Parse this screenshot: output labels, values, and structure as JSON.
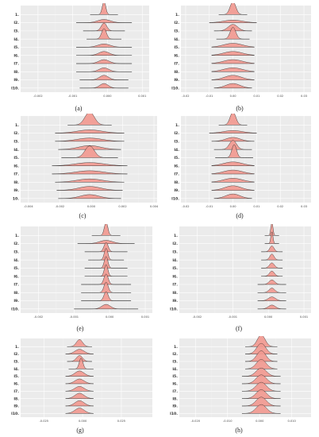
{
  "colors": {
    "ridge_fill": "#f19990",
    "panel_bg": "#ebebeb",
    "line": "#2b2b2b"
  },
  "chart_data": [
    {
      "id": "a",
      "caption": "(a)",
      "type": "ridgeline",
      "labels": [
        "1.",
        "I2.",
        "I3.",
        "I4.",
        "I5.",
        "I6.",
        "I7.",
        "I8.",
        "I9.",
        "I10."
      ],
      "x_ticks": [
        "-0.002",
        "-0.001",
        "0.000",
        "0.001"
      ],
      "xlim": [
        -0.0025,
        0.0012
      ],
      "ridges": [
        {
          "center": -0.0001,
          "spread": 5e-05,
          "height": 1.0,
          "tail": 0.0004
        },
        {
          "center": -0.0001,
          "spread": 0.00018,
          "height": 0.25,
          "tail": 0.0008
        },
        {
          "center": -0.0001,
          "spread": 8e-05,
          "height": 0.6,
          "tail": 0.0006
        },
        {
          "center": -0.0001,
          "spread": 7e-05,
          "height": 0.8,
          "tail": 0.0005
        },
        {
          "center": -0.0001,
          "spread": 0.00018,
          "height": 0.25,
          "tail": 0.0008
        },
        {
          "center": -0.0001,
          "spread": 0.00015,
          "height": 0.3,
          "tail": 0.0008
        },
        {
          "center": -0.0001,
          "spread": 0.00015,
          "height": 0.3,
          "tail": 0.0008
        },
        {
          "center": -0.0001,
          "spread": 0.00014,
          "height": 0.3,
          "tail": 0.0008
        },
        {
          "center": -0.0001,
          "spread": 0.00013,
          "height": 0.35,
          "tail": 0.0007
        },
        {
          "center": -0.0001,
          "spread": 0.00012,
          "height": 0.35,
          "tail": 0.0007
        }
      ]
    },
    {
      "id": "b",
      "caption": "(b)",
      "type": "ridgeline",
      "labels": [
        "1.",
        "I2.",
        "I3.",
        "I4.",
        "I5.",
        "I6.",
        "I7.",
        "I8.",
        "I9.",
        "I10."
      ],
      "x_ticks": [
        "-0.02",
        "-0.01",
        "0.00",
        "0.01",
        "0.02",
        "0.03"
      ],
      "xlim": [
        -0.022,
        0.033
      ],
      "ridges": [
        {
          "center": 0.0,
          "spread": 0.0012,
          "height": 1.0,
          "tail": 0.006
        },
        {
          "center": 0.0,
          "spread": 0.004,
          "height": 0.2,
          "tail": 0.01
        },
        {
          "center": 0.0,
          "spread": 0.002,
          "height": 0.5,
          "tail": 0.008
        },
        {
          "center": 0.0,
          "spread": 0.0012,
          "height": 0.9,
          "tail": 0.007
        },
        {
          "center": 0.0,
          "spread": 0.004,
          "height": 0.3,
          "tail": 0.009
        },
        {
          "center": 0.0,
          "spread": 0.004,
          "height": 0.3,
          "tail": 0.009
        },
        {
          "center": 0.0,
          "spread": 0.004,
          "height": 0.3,
          "tail": 0.009
        },
        {
          "center": 0.0,
          "spread": 0.004,
          "height": 0.3,
          "tail": 0.009
        },
        {
          "center": 0.0,
          "spread": 0.0035,
          "height": 0.35,
          "tail": 0.009
        },
        {
          "center": 0.0,
          "spread": 0.003,
          "height": 0.35,
          "tail": 0.008
        }
      ]
    },
    {
      "id": "c",
      "caption": "(c)",
      "type": "ridgeline",
      "labels": [
        "1.",
        "I2.",
        "I3.",
        "I4.",
        "I5.",
        "I6.",
        "I7.",
        "I8.",
        "I9.",
        "10."
      ],
      "x_ticks": [
        "-0.004",
        "-0.002",
        "0.000",
        "0.002",
        "0.004"
      ],
      "xlim": [
        -0.0045,
        0.0042
      ],
      "ridges": [
        {
          "center": -0.0001,
          "spread": 0.0003,
          "height": 1.0,
          "tail": 0.0014
        },
        {
          "center": -0.0001,
          "spread": 0.0008,
          "height": 0.25,
          "tail": 0.0022
        },
        {
          "center": -0.0001,
          "spread": 0.0008,
          "height": 0.25,
          "tail": 0.0022
        },
        {
          "center": -0.0001,
          "spread": 0.0007,
          "height": 0.3,
          "tail": 0.002
        },
        {
          "center": -0.0001,
          "spread": 0.0003,
          "height": 0.9,
          "tail": 0.0018
        },
        {
          "center": -0.0001,
          "spread": 0.0009,
          "height": 0.25,
          "tail": 0.0024
        },
        {
          "center": -0.0001,
          "spread": 0.0009,
          "height": 0.25,
          "tail": 0.0024
        },
        {
          "center": -0.0001,
          "spread": 0.0008,
          "height": 0.25,
          "tail": 0.0022
        },
        {
          "center": -0.0001,
          "spread": 0.0007,
          "height": 0.3,
          "tail": 0.0021
        },
        {
          "center": -0.0001,
          "spread": 0.0006,
          "height": 0.3,
          "tail": 0.002
        }
      ]
    },
    {
      "id": "d",
      "caption": "(d)",
      "type": "ridgeline",
      "labels": [
        "1.",
        "I2.",
        "I3.",
        "I4.",
        "I5.",
        "I6.",
        "I7.",
        "I8.",
        "I9.",
        "I10."
      ],
      "x_ticks": [
        "-0.02",
        "-0.01",
        "0.00",
        "0.01",
        "0.02",
        "0.03"
      ],
      "xlim": [
        -0.022,
        0.033
      ],
      "ridges": [
        {
          "center": 0.0,
          "spread": 0.0012,
          "height": 1.0,
          "tail": 0.006
        },
        {
          "center": 0.0,
          "spread": 0.004,
          "height": 0.2,
          "tail": 0.01
        },
        {
          "center": 0.0,
          "spread": 0.003,
          "height": 0.3,
          "tail": 0.009
        },
        {
          "center": 0.0,
          "spread": 0.0015,
          "height": 0.7,
          "tail": 0.008
        },
        {
          "center": 0.0005,
          "spread": 0.001,
          "height": 1.0,
          "tail": 0.008
        },
        {
          "center": 0.0,
          "spread": 0.004,
          "height": 0.3,
          "tail": 0.009
        },
        {
          "center": 0.0,
          "spread": 0.004,
          "height": 0.3,
          "tail": 0.009
        },
        {
          "center": 0.0,
          "spread": 0.004,
          "height": 0.3,
          "tail": 0.009
        },
        {
          "center": 0.0,
          "spread": 0.0035,
          "height": 0.35,
          "tail": 0.009
        },
        {
          "center": 0.0,
          "spread": 0.003,
          "height": 0.35,
          "tail": 0.008
        }
      ]
    },
    {
      "id": "e",
      "caption": "(e)",
      "type": "ridgeline",
      "labels": [
        "1.",
        "I2.",
        "I3.",
        "I4.",
        "I5.",
        "I6.",
        "I7.",
        "I8.",
        "I9.",
        "I10."
      ],
      "x_ticks": [
        "-0.002",
        "-0.001",
        "0.000",
        "0.001"
      ],
      "xlim": [
        -0.0025,
        0.0012
      ],
      "ridges": [
        {
          "center": -0.0001,
          "spread": 5e-05,
          "height": 1.0,
          "tail": 0.0004
        },
        {
          "center": -0.0001,
          "spread": 0.00018,
          "height": 0.25,
          "tail": 0.0008
        },
        {
          "center": -0.0001,
          "spread": 6e-05,
          "height": 0.7,
          "tail": 0.0006
        },
        {
          "center": -0.0001,
          "spread": 5e-05,
          "height": 0.9,
          "tail": 0.0005
        },
        {
          "center": -0.0001,
          "spread": 5e-05,
          "height": 0.9,
          "tail": 0.0006
        },
        {
          "center": -0.0001,
          "spread": 5e-05,
          "height": 0.9,
          "tail": 0.0006
        },
        {
          "center": -0.0001,
          "spread": 6e-05,
          "height": 0.8,
          "tail": 0.0007
        },
        {
          "center": -0.0001,
          "spread": 6e-05,
          "height": 0.8,
          "tail": 0.0007
        },
        {
          "center": -0.0001,
          "spread": 6e-05,
          "height": 0.7,
          "tail": 0.0007
        },
        {
          "center": -0.0001,
          "spread": 0.00012,
          "height": 0.35,
          "tail": 0.0009
        }
      ]
    },
    {
      "id": "f",
      "caption": "(f)",
      "type": "ridgeline",
      "labels": [
        "1.",
        "I2.",
        "I3.",
        "I4.",
        "I5.",
        "I6.",
        "I7.",
        "I8.",
        "I9.",
        "I10."
      ],
      "x_ticks": [
        "-0.002",
        "-0.001",
        "0.000",
        "0.001"
      ],
      "xlim": [
        -0.0025,
        0.0012
      ],
      "ridges": [
        {
          "center": 0.0001,
          "spread": 3e-05,
          "height": 1.0,
          "tail": 0.0002
        },
        {
          "center": 0.0001,
          "spread": 3e-05,
          "height": 0.9,
          "tail": 0.0002
        },
        {
          "center": 0.0001,
          "spread": 6e-05,
          "height": 0.45,
          "tail": 0.0003
        },
        {
          "center": 0.0001,
          "spread": 6e-05,
          "height": 0.45,
          "tail": 0.0003
        },
        {
          "center": 0.0001,
          "spread": 7e-05,
          "height": 0.4,
          "tail": 0.0003
        },
        {
          "center": 0.0001,
          "spread": 7e-05,
          "height": 0.4,
          "tail": 0.0003
        },
        {
          "center": 0.0001,
          "spread": 8e-05,
          "height": 0.35,
          "tail": 0.0004
        },
        {
          "center": 0.0001,
          "spread": 8e-05,
          "height": 0.35,
          "tail": 0.0004
        },
        {
          "center": 0.0001,
          "spread": 0.0001,
          "height": 0.3,
          "tail": 0.0004
        },
        {
          "center": 0.0001,
          "spread": 0.0001,
          "height": 0.3,
          "tail": 0.0004
        }
      ]
    },
    {
      "id": "g",
      "caption": "(g)",
      "type": "ridgeline",
      "labels": [
        "1.",
        "I2.",
        "I3.",
        "I4.",
        "I5.",
        "I6.",
        "I7.",
        "I8.",
        "I9.",
        "I10."
      ],
      "x_ticks": [
        "-0.025",
        "0.000",
        "0.025"
      ],
      "xlim": [
        -0.04,
        0.045
      ],
      "ridges": [
        {
          "center": -0.002,
          "spread": 0.002,
          "height": 0.6,
          "tail": 0.008
        },
        {
          "center": -0.002,
          "spread": 0.003,
          "height": 0.4,
          "tail": 0.009
        },
        {
          "center": -0.002,
          "spread": 0.002,
          "height": 0.5,
          "tail": 0.008
        },
        {
          "center": -0.001,
          "spread": 0.0012,
          "height": 0.9,
          "tail": 0.008
        },
        {
          "center": -0.002,
          "spread": 0.003,
          "height": 0.45,
          "tail": 0.009
        },
        {
          "center": -0.002,
          "spread": 0.003,
          "height": 0.4,
          "tail": 0.009
        },
        {
          "center": -0.002,
          "spread": 0.003,
          "height": 0.4,
          "tail": 0.009
        },
        {
          "center": -0.002,
          "spread": 0.003,
          "height": 0.45,
          "tail": 0.009
        },
        {
          "center": -0.002,
          "spread": 0.003,
          "height": 0.45,
          "tail": 0.009
        },
        {
          "center": -0.002,
          "spread": 0.003,
          "height": 0.45,
          "tail": 0.009
        }
      ]
    },
    {
      "id": "h",
      "caption": "(h)",
      "type": "ridgeline",
      "labels": [
        "1.",
        "I2.",
        "I3.",
        "I4.",
        "I5.",
        "I6.",
        "I7.",
        "I8.",
        "I9.",
        "I10."
      ],
      "x_ticks": [
        "-0.020",
        "-0.010",
        "0.000",
        "0.010"
      ],
      "xlim": [
        -0.025,
        0.016
      ],
      "ridges": [
        {
          "center": 0.0005,
          "spread": 0.0012,
          "height": 1.0,
          "tail": 0.005
        },
        {
          "center": 0.0005,
          "spread": 0.0014,
          "height": 0.9,
          "tail": 0.005
        },
        {
          "center": 0.0005,
          "spread": 0.0014,
          "height": 0.9,
          "tail": 0.005
        },
        {
          "center": 0.0005,
          "spread": 0.0015,
          "height": 0.8,
          "tail": 0.005
        },
        {
          "center": 0.0005,
          "spread": 0.0016,
          "height": 0.7,
          "tail": 0.006
        },
        {
          "center": 0.0005,
          "spread": 0.0016,
          "height": 0.75,
          "tail": 0.006
        },
        {
          "center": 0.0005,
          "spread": 0.0016,
          "height": 0.75,
          "tail": 0.006
        },
        {
          "center": 0.0005,
          "spread": 0.0016,
          "height": 0.75,
          "tail": 0.006
        },
        {
          "center": 0.0005,
          "spread": 0.0016,
          "height": 0.75,
          "tail": 0.006
        },
        {
          "center": 0.0005,
          "spread": 0.0016,
          "height": 0.75,
          "tail": 0.006
        }
      ]
    }
  ]
}
